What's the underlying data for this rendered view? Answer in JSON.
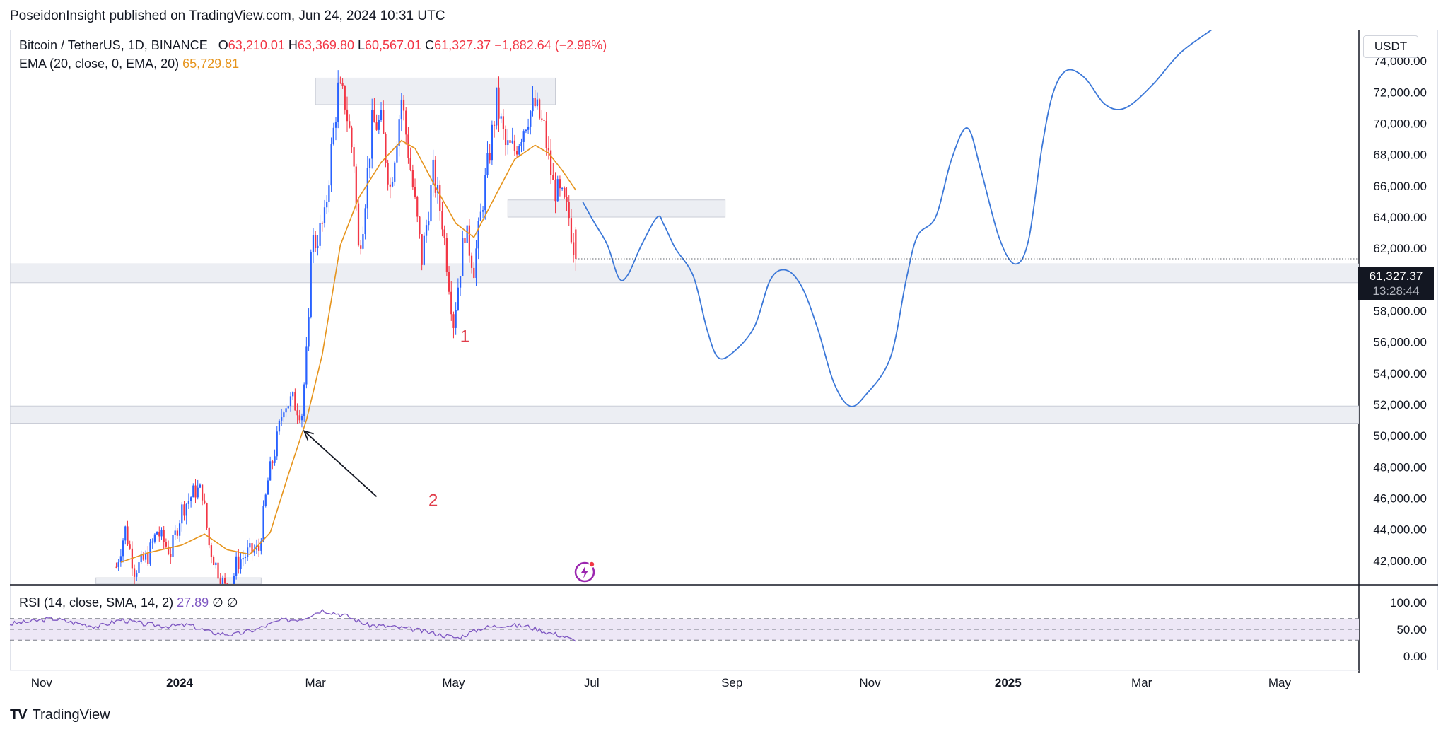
{
  "header": {
    "published_by": "PoseidonInsight published on TradingView.com, Jun 24, 2024 10:31 UTC"
  },
  "legend": {
    "symbol": "Bitcoin / TetherUS, 1D, BINANCE",
    "open_label": "O",
    "open": "63,210.01",
    "high_label": "H",
    "high": "63,369.80",
    "low_label": "L",
    "low": "60,567.01",
    "close_label": "C",
    "close": "61,327.37",
    "change": "−1,882.64 (−2.98%)",
    "ema_label": "EMA (20, close, 0, EMA, 20)",
    "ema_value": "65,729.81",
    "rsi_label": "RSI (14, close, SMA, 14, 2)",
    "rsi_value": "27.89",
    "rsi_extra": "∅ ∅"
  },
  "currency": "USDT",
  "last_price": {
    "value": "61,327.37",
    "countdown": "13:28:44"
  },
  "annotations": {
    "label_1": "1",
    "label_2": "2"
  },
  "footer": {
    "brand": "TradingView",
    "brand_mark": "TV"
  },
  "colors": {
    "up": "#2962ff",
    "down": "#f23645",
    "ema": "#e6941c",
    "projection": "#3c78d8",
    "zone": "#eceef3",
    "rsi": "#7e57c2",
    "rsi_band": "#ede7f6",
    "annotation": "#e03c4a"
  },
  "chart_data": {
    "type": "candlestick",
    "y_axis": {
      "range": [
        40500,
        76000
      ],
      "ticks": [
        42000,
        44000,
        46000,
        48000,
        50000,
        52000,
        54000,
        56000,
        58000,
        60000,
        62000,
        64000,
        66000,
        68000,
        70000,
        72000,
        74000
      ],
      "tick_labels": [
        "42,000.00",
        "44,000.00",
        "46,000.00",
        "48,000.00",
        "50,000.00",
        "52,000.00",
        "54,000.00",
        "56,000.00",
        "58,000.00",
        "60,000.00",
        "62,000.00",
        "64,000.00",
        "66,000.00",
        "68,000.00",
        "70,000.00",
        "72,000.00",
        "74,000.00"
      ]
    },
    "x_axis": {
      "range": [
        "2023-10-18",
        "2025-06-05"
      ],
      "ticks": [
        {
          "date": "2023-11-01",
          "label": "Nov",
          "bold": false
        },
        {
          "date": "2024-01-01",
          "label": "2024",
          "bold": true
        },
        {
          "date": "2024-03-01",
          "label": "Mar",
          "bold": false
        },
        {
          "date": "2024-05-01",
          "label": "May",
          "bold": false
        },
        {
          "date": "2024-07-01",
          "label": "Jul",
          "bold": false
        },
        {
          "date": "2024-09-01",
          "label": "Sep",
          "bold": false
        },
        {
          "date": "2024-11-01",
          "label": "Nov",
          "bold": false
        },
        {
          "date": "2025-01-01",
          "label": "2025",
          "bold": true
        },
        {
          "date": "2025-03-01",
          "label": "Mar",
          "bold": false
        },
        {
          "date": "2025-05-01",
          "label": "May",
          "bold": false
        }
      ]
    },
    "price_path": [
      [
        "2023-12-04",
        41600
      ],
      [
        "2023-12-08",
        44000
      ],
      [
        "2023-12-12",
        41400
      ],
      [
        "2023-12-18",
        42300
      ],
      [
        "2023-12-22",
        43900
      ],
      [
        "2023-12-28",
        42500
      ],
      [
        "2024-01-02",
        45300
      ],
      [
        "2024-01-08",
        46500
      ],
      [
        "2024-01-11",
        46400
      ],
      [
        "2024-01-14",
        43000
      ],
      [
        "2024-01-18",
        41300
      ],
      [
        "2024-01-23",
        39600
      ],
      [
        "2024-01-26",
        41800
      ],
      [
        "2024-01-31",
        42500
      ],
      [
        "2024-02-05",
        42700
      ],
      [
        "2024-02-09",
        47100
      ],
      [
        "2024-02-13",
        49700
      ],
      [
        "2024-02-16",
        52100
      ],
      [
        "2024-02-20",
        52200
      ],
      [
        "2024-02-24",
        51500
      ],
      [
        "2024-02-27",
        56900
      ],
      [
        "2024-02-28",
        62500
      ],
      [
        "2024-03-01",
        62400
      ],
      [
        "2024-03-05",
        63800
      ],
      [
        "2024-03-08",
        68200
      ],
      [
        "2024-03-11",
        72100
      ],
      [
        "2024-03-14",
        71400
      ],
      [
        "2024-03-18",
        67600
      ],
      [
        "2024-03-20",
        61900
      ],
      [
        "2024-03-22",
        63800
      ],
      [
        "2024-03-26",
        69900
      ],
      [
        "2024-03-30",
        70000
      ],
      [
        "2024-04-03",
        65900
      ],
      [
        "2024-04-08",
        71600
      ],
      [
        "2024-04-12",
        67100
      ],
      [
        "2024-04-17",
        61300
      ],
      [
        "2024-04-22",
        66800
      ],
      [
        "2024-04-26",
        63800
      ],
      [
        "2024-05-01",
        57300
      ],
      [
        "2024-05-06",
        63200
      ],
      [
        "2024-05-10",
        60800
      ],
      [
        "2024-05-15",
        66200
      ],
      [
        "2024-05-20",
        71400
      ],
      [
        "2024-05-24",
        68500
      ],
      [
        "2024-05-28",
        68300
      ],
      [
        "2024-06-03",
        70600
      ],
      [
        "2024-06-06",
        71100
      ],
      [
        "2024-06-10",
        69600
      ],
      [
        "2024-06-14",
        66000
      ],
      [
        "2024-06-18",
        65100
      ],
      [
        "2024-06-21",
        64000
      ],
      [
        "2024-06-24",
        61327
      ]
    ],
    "ema_path": [
      [
        "2023-12-06",
        41900
      ],
      [
        "2023-12-18",
        42500
      ],
      [
        "2024-01-02",
        43000
      ],
      [
        "2024-01-12",
        43700
      ],
      [
        "2024-01-22",
        42700
      ],
      [
        "2024-02-01",
        42400
      ],
      [
        "2024-02-10",
        43800
      ],
      [
        "2024-02-18",
        47500
      ],
      [
        "2024-02-26",
        51000
      ],
      [
        "2024-03-04",
        55200
      ],
      [
        "2024-03-12",
        62200
      ],
      [
        "2024-03-20",
        65200
      ],
      [
        "2024-03-30",
        67500
      ],
      [
        "2024-04-08",
        68900
      ],
      [
        "2024-04-14",
        68400
      ],
      [
        "2024-04-22",
        66200
      ],
      [
        "2024-05-02",
        63600
      ],
      [
        "2024-05-10",
        62700
      ],
      [
        "2024-05-20",
        65500
      ],
      [
        "2024-05-28",
        67700
      ],
      [
        "2024-06-06",
        68600
      ],
      [
        "2024-06-12",
        68100
      ],
      [
        "2024-06-18",
        67000
      ],
      [
        "2024-06-24",
        65730
      ]
    ],
    "zones": [
      {
        "from": "2024-03-01",
        "to": "2024-06-15",
        "low": 71200,
        "high": 72900
      },
      {
        "from": "2024-05-25",
        "to": "2024-08-29",
        "low": 64000,
        "high": 65100
      },
      {
        "from": "2023-10-18",
        "to": "2025-06-05",
        "low": 59800,
        "high": 61000
      },
      {
        "from": "2023-10-18",
        "to": "2025-06-05",
        "low": 50800,
        "high": 51900
      },
      {
        "from": "2023-11-25",
        "to": "2024-02-06",
        "low": 40500,
        "high": 40900
      }
    ],
    "projection": [
      [
        "2024-06-27",
        65000
      ],
      [
        "2024-07-02",
        63700
      ],
      [
        "2024-07-08",
        62200
      ],
      [
        "2024-07-13",
        60100
      ],
      [
        "2024-07-17",
        60300
      ],
      [
        "2024-07-23",
        62200
      ],
      [
        "2024-07-30",
        64000
      ],
      [
        "2024-08-02",
        63500
      ],
      [
        "2024-08-07",
        62000
      ],
      [
        "2024-08-15",
        60200
      ],
      [
        "2024-08-21",
        56800
      ],
      [
        "2024-08-26",
        55000
      ],
      [
        "2024-09-02",
        55400
      ],
      [
        "2024-09-11",
        57000
      ],
      [
        "2024-09-18",
        60000
      ],
      [
        "2024-09-25",
        60600
      ],
      [
        "2024-10-02",
        59500
      ],
      [
        "2024-10-09",
        56800
      ],
      [
        "2024-10-16",
        53400
      ],
      [
        "2024-10-23",
        51900
      ],
      [
        "2024-10-30",
        52600
      ],
      [
        "2024-11-10",
        55000
      ],
      [
        "2024-11-17",
        60000
      ],
      [
        "2024-11-22",
        62800
      ],
      [
        "2024-11-30",
        64000
      ],
      [
        "2024-12-07",
        67700
      ],
      [
        "2024-12-14",
        69700
      ],
      [
        "2024-12-20",
        67000
      ],
      [
        "2024-12-28",
        62700
      ],
      [
        "2025-01-04",
        61000
      ],
      [
        "2025-01-10",
        62500
      ],
      [
        "2025-01-16",
        68500
      ],
      [
        "2025-01-21",
        72000
      ],
      [
        "2025-01-27",
        73400
      ],
      [
        "2025-02-04",
        72900
      ],
      [
        "2025-02-13",
        71200
      ],
      [
        "2025-02-22",
        71000
      ],
      [
        "2025-03-06",
        72500
      ],
      [
        "2025-03-18",
        74500
      ],
      [
        "2025-04-01",
        76000
      ]
    ],
    "arrow": {
      "from": [
        "2024-03-28",
        46100
      ],
      "to": [
        "2024-02-25",
        50300
      ]
    },
    "annotation_points": {
      "label_1": [
        "2024-05-06",
        56000
      ],
      "label_2": [
        "2024-04-22",
        45500
      ]
    },
    "rsi": {
      "range": [
        0,
        100
      ],
      "ticks": [
        0,
        50,
        100
      ],
      "tick_labels": [
        "0.00",
        "50.00",
        "100.00"
      ],
      "band": [
        30,
        70
      ],
      "path": [
        [
          "2023-10-18",
          60
        ],
        [
          "2023-10-28",
          65
        ],
        [
          "2023-11-06",
          70
        ],
        [
          "2023-11-16",
          62
        ],
        [
          "2023-11-26",
          55
        ],
        [
          "2023-12-06",
          68
        ],
        [
          "2023-12-16",
          60
        ],
        [
          "2023-12-26",
          56
        ],
        [
          "2024-01-05",
          58
        ],
        [
          "2024-01-15",
          44
        ],
        [
          "2024-01-25",
          40
        ],
        [
          "2024-02-04",
          50
        ],
        [
          "2024-02-14",
          66
        ],
        [
          "2024-02-24",
          70
        ],
        [
          "2024-03-04",
          86
        ],
        [
          "2024-03-14",
          76
        ],
        [
          "2024-03-24",
          58
        ],
        [
          "2024-04-03",
          55
        ],
        [
          "2024-04-13",
          50
        ],
        [
          "2024-04-23",
          42
        ],
        [
          "2024-05-03",
          34
        ],
        [
          "2024-05-13",
          52
        ],
        [
          "2024-05-23",
          58
        ],
        [
          "2024-06-02",
          56
        ],
        [
          "2024-06-12",
          44
        ],
        [
          "2024-06-18",
          38
        ],
        [
          "2024-06-24",
          27.89
        ]
      ]
    }
  }
}
